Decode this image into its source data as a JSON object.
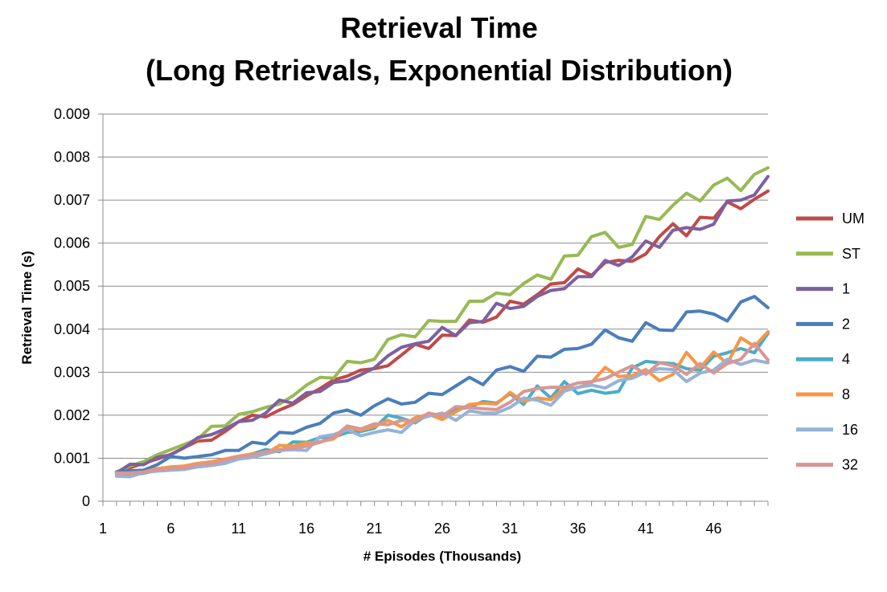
{
  "chart_data": {
    "type": "line",
    "title_lines": [
      "Retrieval Time",
      "(Long Retrievals, Exponential  Distribution)"
    ],
    "xlabel": "# Episodes (Thousands)",
    "ylabel": "Retrieval Time (s)",
    "x_ticks": [
      "1",
      "6",
      "11",
      "16",
      "21",
      "26",
      "31",
      "36",
      "41",
      "46"
    ],
    "y_ticks": [
      "0",
      "0.001",
      "0.002",
      "0.003",
      "0.004",
      "0.005",
      "0.006",
      "0.007",
      "0.008",
      "0.009"
    ],
    "ylim": [
      0,
      0.009
    ],
    "grid": true,
    "legend_position": "right",
    "x": [
      2,
      3,
      4,
      5,
      6,
      7,
      8,
      9,
      10,
      11,
      12,
      13,
      14,
      15,
      16,
      17,
      18,
      19,
      20,
      21,
      22,
      23,
      24,
      25,
      26,
      27,
      28,
      29,
      30,
      31,
      32,
      33,
      34,
      35,
      36,
      37,
      38,
      39,
      40,
      41,
      42,
      43,
      44,
      45,
      46,
      47,
      48,
      49,
      50
    ],
    "series": [
      {
        "name": "UM",
        "color": "#be4b48",
        "values": [
          0.00068,
          0.00078,
          0.00088,
          0.00098,
          0.00109,
          0.00125,
          0.0014,
          0.00142,
          0.00162,
          0.00185,
          0.002,
          0.00196,
          0.00212,
          0.00225,
          0.00245,
          0.00262,
          0.00282,
          0.00291,
          0.00305,
          0.00308,
          0.00315,
          0.0034,
          0.00365,
          0.00355,
          0.00386,
          0.00385,
          0.00421,
          0.00416,
          0.00428,
          0.00465,
          0.00458,
          0.0048,
          0.00505,
          0.00508,
          0.0054,
          0.00525,
          0.00555,
          0.0056,
          0.00558,
          0.00575,
          0.00615,
          0.00645,
          0.00617,
          0.0066,
          0.00658,
          0.00696,
          0.0068,
          0.00702,
          0.00721
        ]
      },
      {
        "name": "ST",
        "color": "#98b954",
        "values": [
          0.00068,
          0.00082,
          0.00092,
          0.00108,
          0.0012,
          0.00132,
          0.00145,
          0.00174,
          0.00175,
          0.00202,
          0.00208,
          0.00218,
          0.00226,
          0.00245,
          0.0027,
          0.00288,
          0.00286,
          0.00325,
          0.00322,
          0.0033,
          0.00376,
          0.00387,
          0.00382,
          0.0042,
          0.00418,
          0.00418,
          0.00465,
          0.00465,
          0.00484,
          0.0048,
          0.00506,
          0.00526,
          0.00516,
          0.0057,
          0.00572,
          0.00615,
          0.00625,
          0.0059,
          0.00597,
          0.00662,
          0.00655,
          0.00688,
          0.00716,
          0.00698,
          0.00735,
          0.00751,
          0.00722,
          0.0076,
          0.00775
        ]
      },
      {
        "name": "1",
        "color": "#7d60a0",
        "values": [
          0.00066,
          0.00086,
          0.00085,
          0.00102,
          0.00108,
          0.00125,
          0.00148,
          0.00155,
          0.00168,
          0.00185,
          0.00188,
          0.00205,
          0.00235,
          0.00228,
          0.00252,
          0.00255,
          0.00276,
          0.0028,
          0.00294,
          0.0031,
          0.00338,
          0.00358,
          0.00366,
          0.00372,
          0.00404,
          0.00385,
          0.00415,
          0.00418,
          0.0046,
          0.00448,
          0.00453,
          0.00476,
          0.0049,
          0.00494,
          0.00522,
          0.00522,
          0.0056,
          0.00548,
          0.00568,
          0.00605,
          0.0059,
          0.0063,
          0.00636,
          0.00632,
          0.00644,
          0.00698,
          0.007,
          0.00712,
          0.00755
        ]
      },
      {
        "name": "2",
        "color": "#4a7ebb",
        "values": [
          0.00068,
          0.00071,
          0.00072,
          0.00085,
          0.00104,
          0.001,
          0.00104,
          0.00108,
          0.00118,
          0.00118,
          0.00137,
          0.00133,
          0.0016,
          0.00158,
          0.00172,
          0.00181,
          0.00205,
          0.00212,
          0.002,
          0.00222,
          0.00238,
          0.00226,
          0.0023,
          0.00251,
          0.00248,
          0.00268,
          0.00288,
          0.00271,
          0.00305,
          0.00313,
          0.00302,
          0.00337,
          0.00335,
          0.00353,
          0.00355,
          0.00365,
          0.00398,
          0.0038,
          0.00372,
          0.00415,
          0.00398,
          0.00397,
          0.0044,
          0.00442,
          0.00435,
          0.00419,
          0.00463,
          0.00476,
          0.0045
        ]
      },
      {
        "name": "4",
        "color": "#4bacc6",
        "values": [
          0.00062,
          0.00061,
          0.00065,
          0.00072,
          0.00076,
          0.00079,
          0.00085,
          0.00087,
          0.00096,
          0.00103,
          0.0011,
          0.0012,
          0.00115,
          0.00138,
          0.00137,
          0.00148,
          0.00149,
          0.0016,
          0.00162,
          0.0017,
          0.002,
          0.00193,
          0.00182,
          0.00203,
          0.00195,
          0.00215,
          0.00218,
          0.00232,
          0.00228,
          0.0025,
          0.00225,
          0.00268,
          0.0024,
          0.00278,
          0.0025,
          0.00258,
          0.00251,
          0.00255,
          0.0031,
          0.00325,
          0.00322,
          0.0032,
          0.00308,
          0.00305,
          0.00337,
          0.00345,
          0.00355,
          0.00345,
          0.0039
        ]
      },
      {
        "name": "8",
        "color": "#f79646",
        "values": [
          0.00064,
          0.00066,
          0.00068,
          0.00076,
          0.0008,
          0.00082,
          0.00088,
          0.00092,
          0.00098,
          0.00105,
          0.0011,
          0.0011,
          0.0013,
          0.00128,
          0.00136,
          0.00138,
          0.00145,
          0.00172,
          0.00165,
          0.00174,
          0.00188,
          0.00173,
          0.00194,
          0.00202,
          0.0019,
          0.00208,
          0.00225,
          0.00228,
          0.00226,
          0.00253,
          0.00232,
          0.0024,
          0.00236,
          0.00262,
          0.00264,
          0.00276,
          0.00311,
          0.0029,
          0.00292,
          0.00306,
          0.0028,
          0.00295,
          0.00346,
          0.0031,
          0.00347,
          0.0032,
          0.0038,
          0.0036,
          0.00394
        ]
      },
      {
        "name": "16",
        "color": "#95b3d7",
        "values": [
          0.00058,
          0.00057,
          0.00067,
          0.0007,
          0.00072,
          0.00074,
          0.0008,
          0.00083,
          0.00088,
          0.00098,
          0.00102,
          0.0011,
          0.00118,
          0.0012,
          0.00118,
          0.0015,
          0.00155,
          0.00166,
          0.00152,
          0.0016,
          0.00166,
          0.0016,
          0.00188,
          0.00198,
          0.00205,
          0.00188,
          0.0021,
          0.00205,
          0.00205,
          0.00218,
          0.0024,
          0.00235,
          0.00223,
          0.00256,
          0.00265,
          0.0027,
          0.00263,
          0.0028,
          0.00286,
          0.003,
          0.00308,
          0.00306,
          0.00278,
          0.00298,
          0.00305,
          0.0033,
          0.00318,
          0.00328,
          0.00322
        ]
      },
      {
        "name": "32",
        "color": "#d99694",
        "values": [
          0.00066,
          0.00065,
          0.00068,
          0.00073,
          0.00076,
          0.00078,
          0.00085,
          0.00088,
          0.00095,
          0.00104,
          0.00108,
          0.00115,
          0.0012,
          0.00123,
          0.00128,
          0.00137,
          0.00148,
          0.00175,
          0.00168,
          0.0018,
          0.00178,
          0.00188,
          0.00185,
          0.00205,
          0.00198,
          0.0022,
          0.00218,
          0.00215,
          0.00213,
          0.0023,
          0.00255,
          0.00262,
          0.00265,
          0.00265,
          0.00275,
          0.00278,
          0.00285,
          0.003,
          0.00315,
          0.00295,
          0.00322,
          0.00315,
          0.00295,
          0.0032,
          0.00298,
          0.0032,
          0.0033,
          0.00367,
          0.00328
        ]
      }
    ]
  }
}
